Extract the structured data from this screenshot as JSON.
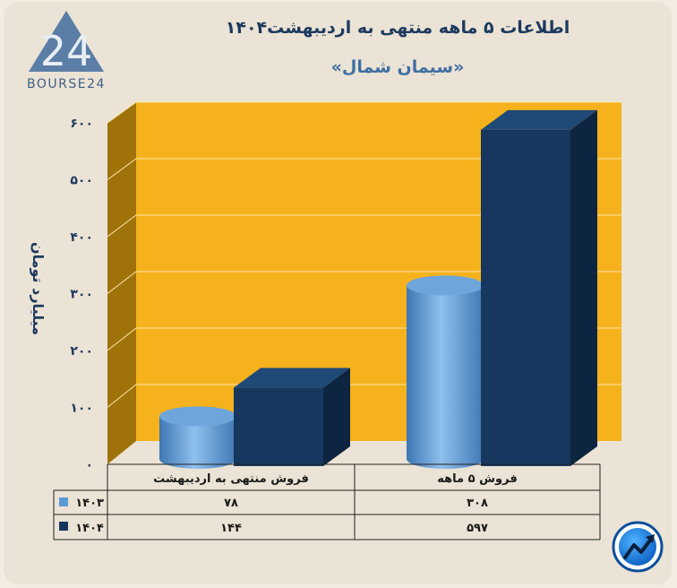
{
  "logo": {
    "number": "24",
    "wordmark": "BOURSE24"
  },
  "chart_data": {
    "type": "bar",
    "title": "اطلاعات ۵ ماهه منتهی به اردیبهشت۱۴۰۴",
    "subtitle": "«سیمان شمال»",
    "ylabel": "میلیارد تومان",
    "ylim": [
      0,
      600
    ],
    "yticks": [
      "۰",
      "۱۰۰",
      "۲۰۰",
      "۳۰۰",
      "۴۰۰",
      "۵۰۰",
      "۶۰۰"
    ],
    "categories": [
      "فروش منتهی به  اردیبهشت",
      "فروش ۵  ماهه"
    ],
    "series": [
      {
        "name": "۱۴۰۳",
        "values": [
          78,
          308
        ],
        "labels": [
          "۷۸",
          "۳۰۸"
        ],
        "color": "#5b9bd5",
        "shape": "cylinder"
      },
      {
        "name": "۱۴۰۴",
        "values": [
          144,
          597
        ],
        "labels": [
          "۱۴۴",
          "۵۹۷"
        ],
        "color": "#17375e",
        "shape": "box"
      }
    ],
    "colors": {
      "plot_back": "#f5b21c",
      "plot_side": "#9f7309",
      "title": "#1d3a5f"
    },
    "legend": "table-left",
    "grid": true
  }
}
